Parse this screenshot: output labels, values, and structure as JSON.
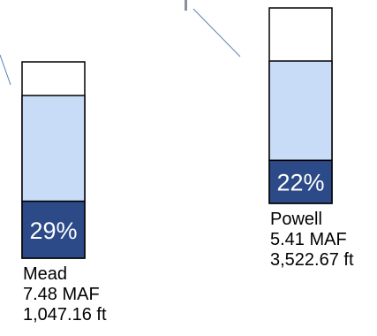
{
  "chart_data": {
    "type": "bar",
    "categories": [
      "Mead",
      "Powell"
    ],
    "series": [
      {
        "values": [
          29,
          22
        ],
        "color": "#2B4A87"
      }
    ],
    "ylim": [
      0,
      100
    ],
    "value_format": "percent",
    "bar_labels": [
      "29%",
      "22%"
    ],
    "reservoirs": [
      {
        "name": "Mead",
        "percent_full": 29,
        "percent_label": "29%",
        "storage": "7.48 MAF",
        "elevation": "1,047.16 ft",
        "fill_color": "#2B4A87",
        "band_color": "#C8DCF7"
      },
      {
        "name": "Powell",
        "percent_full": 22,
        "percent_label": "22%",
        "storage": "5.41 MAF",
        "elevation": "3,522.67 ft",
        "fill_color": "#2B4A87",
        "band_color": "#C8DCF7"
      }
    ],
    "connector_color": "#5B7FB3",
    "grid": false,
    "legend": "none"
  }
}
